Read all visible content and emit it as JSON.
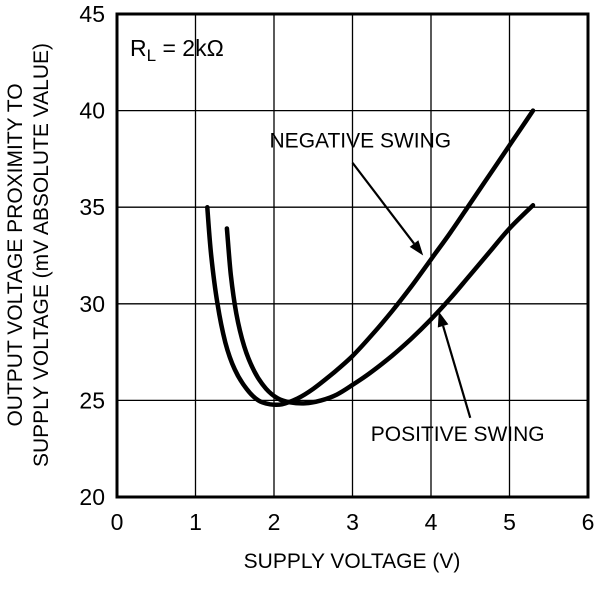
{
  "figure": {
    "background_color": "#ffffff",
    "ink_color": "#000000"
  },
  "chart_data": {
    "type": "line",
    "xlabel": "SUPPLY VOLTAGE (V)",
    "ylabel": "OUTPUT VOLTAGE  PROXIMITY TO SUPPLY VOLTAGE (mV ABSOLUTE VALUE)",
    "ylabel_lines": [
      "OUTPUT VOLTAGE  PROXIMITY TO",
      "SUPPLY VOLTAGE (mV ABSOLUTE VALUE)"
    ],
    "xlim": [
      0,
      6
    ],
    "ylim": [
      20,
      45
    ],
    "x_ticks": [
      0,
      1,
      2,
      3,
      4,
      5,
      6
    ],
    "y_ticks": [
      20,
      25,
      30,
      35,
      40,
      45
    ],
    "grid": true,
    "condition_label": {
      "base": "R",
      "sub": "L",
      "rest": " = 2kΩ"
    },
    "series": [
      {
        "name": "NEGATIVE SWING",
        "points": [
          [
            1.15,
            35.0
          ],
          [
            1.2,
            32.5
          ],
          [
            1.28,
            30.0
          ],
          [
            1.38,
            28.0
          ],
          [
            1.5,
            26.6
          ],
          [
            1.65,
            25.6
          ],
          [
            1.8,
            25.0
          ],
          [
            1.95,
            24.8
          ],
          [
            2.1,
            24.8
          ],
          [
            2.3,
            25.1
          ],
          [
            2.5,
            25.6
          ],
          [
            2.75,
            26.4
          ],
          [
            3.0,
            27.3
          ],
          [
            3.25,
            28.4
          ],
          [
            3.5,
            29.6
          ],
          [
            3.75,
            30.9
          ],
          [
            4.0,
            32.3
          ],
          [
            4.25,
            33.7
          ],
          [
            4.5,
            35.2
          ],
          [
            4.75,
            36.7
          ],
          [
            5.0,
            38.2
          ],
          [
            5.15,
            39.1
          ],
          [
            5.3,
            40.0
          ]
        ]
      },
      {
        "name": "POSITIVE SWING",
        "points": [
          [
            1.4,
            33.9
          ],
          [
            1.45,
            31.5
          ],
          [
            1.52,
            29.5
          ],
          [
            1.62,
            27.8
          ],
          [
            1.75,
            26.5
          ],
          [
            1.9,
            25.6
          ],
          [
            2.05,
            25.1
          ],
          [
            2.2,
            24.9
          ],
          [
            2.4,
            24.85
          ],
          [
            2.6,
            25.0
          ],
          [
            2.8,
            25.3
          ],
          [
            3.0,
            25.8
          ],
          [
            3.25,
            26.5
          ],
          [
            3.5,
            27.3
          ],
          [
            3.75,
            28.2
          ],
          [
            4.0,
            29.2
          ],
          [
            4.25,
            30.3
          ],
          [
            4.5,
            31.5
          ],
          [
            4.75,
            32.7
          ],
          [
            5.0,
            33.9
          ],
          [
            5.3,
            35.1
          ]
        ]
      }
    ],
    "annotations": [
      {
        "text": "NEGATIVE SWING",
        "text_at": [
          3.1,
          38.1
        ],
        "arrow_from": [
          3.0,
          37.3
        ],
        "arrow_to": [
          3.9,
          32.5
        ]
      },
      {
        "text": "POSITIVE SWING",
        "text_at": [
          4.34,
          22.9
        ],
        "arrow_from": [
          4.5,
          24.1
        ],
        "arrow_to": [
          4.1,
          29.6
        ]
      }
    ]
  }
}
